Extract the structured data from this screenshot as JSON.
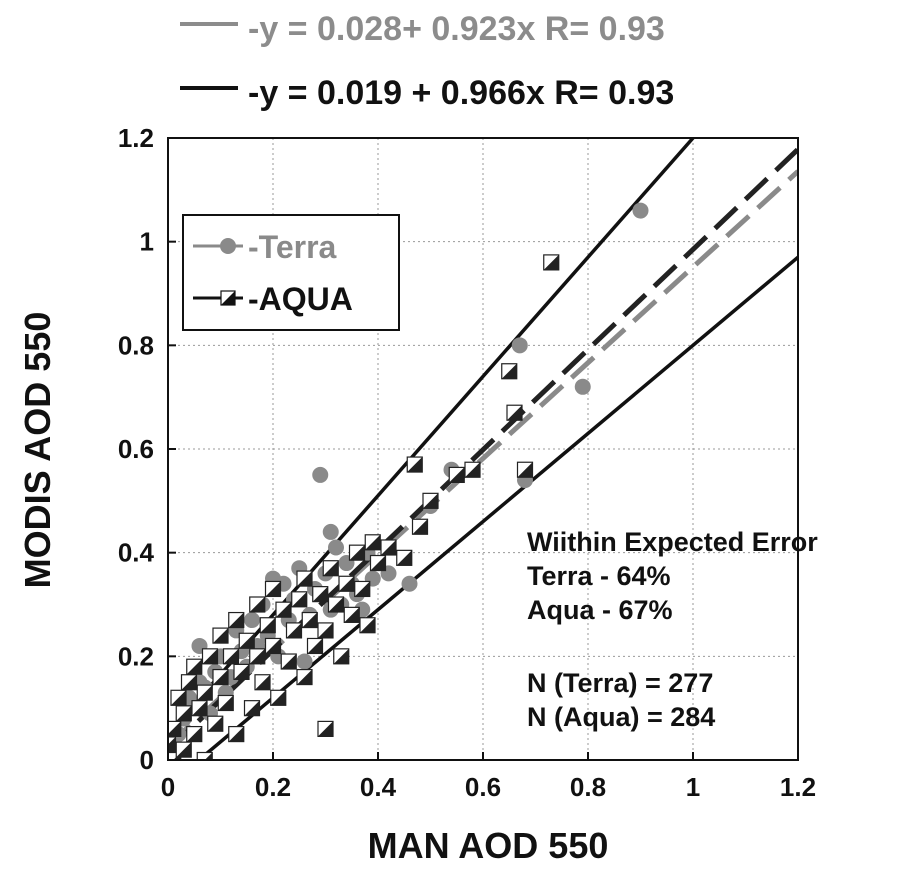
{
  "chart_data": {
    "type": "scatter",
    "title_lines": [
      {
        "text": "-y = 0.028+ 0.923x   R= 0.93",
        "color": "#8c8c8c"
      },
      {
        "text": "-y = 0.019 + 0.966x   R= 0.93",
        "color": "#111111"
      }
    ],
    "xlabel": "MAN AOD 550",
    "ylabel": "MODIS AOD 550",
    "xlim": [
      0,
      1.2
    ],
    "ylim": [
      0,
      1.2
    ],
    "xticks": [
      {
        "v": 0,
        "label": "0"
      },
      {
        "v": 0.2,
        "label": "0.2"
      },
      {
        "v": 0.4,
        "label": "0.4"
      },
      {
        "v": 0.6,
        "label": "0.6"
      },
      {
        "v": 0.8,
        "label": "0.8"
      },
      {
        "v": 1,
        "label": "1"
      },
      {
        "v": 1.2,
        "label": "1.2"
      }
    ],
    "yticks": [
      {
        "v": 0,
        "label": "0"
      },
      {
        "v": 0.2,
        "label": "0.2"
      },
      {
        "v": 0.4,
        "label": "0.4"
      },
      {
        "v": 0.6,
        "label": "0.6"
      },
      {
        "v": 0.8,
        "label": "0.8"
      },
      {
        "v": 1,
        "label": "1"
      },
      {
        "v": 1.2,
        "label": "1.2"
      }
    ],
    "grid": true,
    "legend_position": "top-left",
    "annotations": [
      "Wiithin Expected Error",
      "Terra - 64%",
      "Aqua - 67%",
      "N (Terra) = 277",
      "N (Aqua) = 284"
    ],
    "error_envelope": {
      "intercept": 0.05,
      "slope_fraction": 0.15
    },
    "series": [
      {
        "name": "-Terra",
        "marker": "circle",
        "color": "#8a8a8a",
        "fit": {
          "intercept": 0.028,
          "slope": 0.923
        },
        "points": [
          [
            0.02,
            0.05
          ],
          [
            0.03,
            0.08
          ],
          [
            0.04,
            0.12
          ],
          [
            0.05,
            0.1
          ],
          [
            0.06,
            0.22
          ],
          [
            0.06,
            0.15
          ],
          [
            0.07,
            0.14
          ],
          [
            0.08,
            0.09
          ],
          [
            0.09,
            0.17
          ],
          [
            0.1,
            0.2
          ],
          [
            0.11,
            0.13
          ],
          [
            0.12,
            0.16
          ],
          [
            0.13,
            0.25
          ],
          [
            0.14,
            0.21
          ],
          [
            0.15,
            0.18
          ],
          [
            0.16,
            0.27
          ],
          [
            0.17,
            0.22
          ],
          [
            0.18,
            0.3
          ],
          [
            0.19,
            0.24
          ],
          [
            0.2,
            0.35
          ],
          [
            0.21,
            0.2
          ],
          [
            0.22,
            0.34
          ],
          [
            0.23,
            0.27
          ],
          [
            0.24,
            0.31
          ],
          [
            0.25,
            0.37
          ],
          [
            0.26,
            0.19
          ],
          [
            0.27,
            0.28
          ],
          [
            0.28,
            0.33
          ],
          [
            0.29,
            0.55
          ],
          [
            0.3,
            0.36
          ],
          [
            0.31,
            0.44
          ],
          [
            0.31,
            0.29
          ],
          [
            0.32,
            0.41
          ],
          [
            0.33,
            0.3
          ],
          [
            0.34,
            0.38
          ],
          [
            0.35,
            0.34
          ],
          [
            0.36,
            0.32
          ],
          [
            0.37,
            0.29
          ],
          [
            0.38,
            0.4
          ],
          [
            0.39,
            0.35
          ],
          [
            0.42,
            0.36
          ],
          [
            0.46,
            0.34
          ],
          [
            0.5,
            0.49
          ],
          [
            0.54,
            0.56
          ],
          [
            0.67,
            0.8
          ],
          [
            0.68,
            0.54
          ],
          [
            0.79,
            0.72
          ],
          [
            0.9,
            1.06
          ]
        ]
      },
      {
        "name": "-AQUA",
        "marker": "half-square",
        "color": "#222222",
        "fit": {
          "intercept": 0.019,
          "slope": 0.966
        },
        "points": [
          [
            0.0,
            0.03
          ],
          [
            0.01,
            0.06
          ],
          [
            0.01,
            0.0
          ],
          [
            0.02,
            0.12
          ],
          [
            0.03,
            0.02
          ],
          [
            0.03,
            0.09
          ],
          [
            0.04,
            0.15
          ],
          [
            0.05,
            0.05
          ],
          [
            0.05,
            0.18
          ],
          [
            0.06,
            0.1
          ],
          [
            0.07,
            0.13
          ],
          [
            0.07,
            0.0
          ],
          [
            0.08,
            0.2
          ],
          [
            0.09,
            0.07
          ],
          [
            0.1,
            0.16
          ],
          [
            0.1,
            0.24
          ],
          [
            0.11,
            0.11
          ],
          [
            0.12,
            0.2
          ],
          [
            0.13,
            0.05
          ],
          [
            0.13,
            0.27
          ],
          [
            0.14,
            0.17
          ],
          [
            0.15,
            0.23
          ],
          [
            0.16,
            0.1
          ],
          [
            0.17,
            0.3
          ],
          [
            0.17,
            0.2
          ],
          [
            0.18,
            0.15
          ],
          [
            0.19,
            0.26
          ],
          [
            0.2,
            0.22
          ],
          [
            0.2,
            0.33
          ],
          [
            0.21,
            0.12
          ],
          [
            0.22,
            0.29
          ],
          [
            0.23,
            0.19
          ],
          [
            0.24,
            0.25
          ],
          [
            0.25,
            0.31
          ],
          [
            0.26,
            0.35
          ],
          [
            0.26,
            0.16
          ],
          [
            0.27,
            0.27
          ],
          [
            0.28,
            0.22
          ],
          [
            0.29,
            0.32
          ],
          [
            0.3,
            0.06
          ],
          [
            0.3,
            0.25
          ],
          [
            0.31,
            0.37
          ],
          [
            0.32,
            0.3
          ],
          [
            0.33,
            0.2
          ],
          [
            0.34,
            0.34
          ],
          [
            0.35,
            0.28
          ],
          [
            0.36,
            0.4
          ],
          [
            0.37,
            0.33
          ],
          [
            0.38,
            0.26
          ],
          [
            0.39,
            0.42
          ],
          [
            0.4,
            0.38
          ],
          [
            0.42,
            0.41
          ],
          [
            0.45,
            0.39
          ],
          [
            0.47,
            0.57
          ],
          [
            0.48,
            0.45
          ],
          [
            0.5,
            0.5
          ],
          [
            0.55,
            0.55
          ],
          [
            0.58,
            0.56
          ],
          [
            0.65,
            0.75
          ],
          [
            0.66,
            0.67
          ],
          [
            0.68,
            0.56
          ],
          [
            0.73,
            0.96
          ]
        ]
      }
    ]
  }
}
